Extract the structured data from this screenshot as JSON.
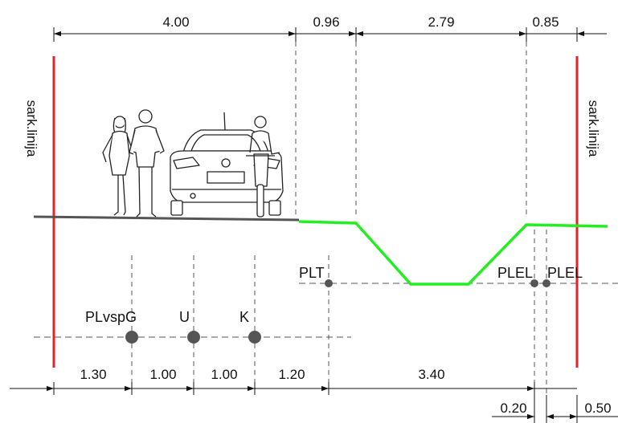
{
  "top_dimensions": [
    "4.00",
    "0.96",
    "2.79",
    "0.85"
  ],
  "bottom_dimensions": [
    "1.30",
    "1.00",
    "1.00",
    "1.20",
    "3.40"
  ],
  "bottom_small_dimensions": [
    "0.20",
    "0.50"
  ],
  "boundary_labels": {
    "left": "sark.linija",
    "right": "sark.linija"
  },
  "point_labels": {
    "plvspg": "PLvspG",
    "u": "U",
    "k": "K",
    "plt": "PLT",
    "plel_1": "PLEL",
    "plel_2": "PLEL"
  },
  "colors": {
    "boundary": "#e8202a",
    "green_terrain": "#22ee22",
    "lines": "#333333",
    "points": "#555555"
  },
  "icons": [
    "pedestrian-couple-icon",
    "car-rear-icon",
    "cyclist-icon"
  ]
}
